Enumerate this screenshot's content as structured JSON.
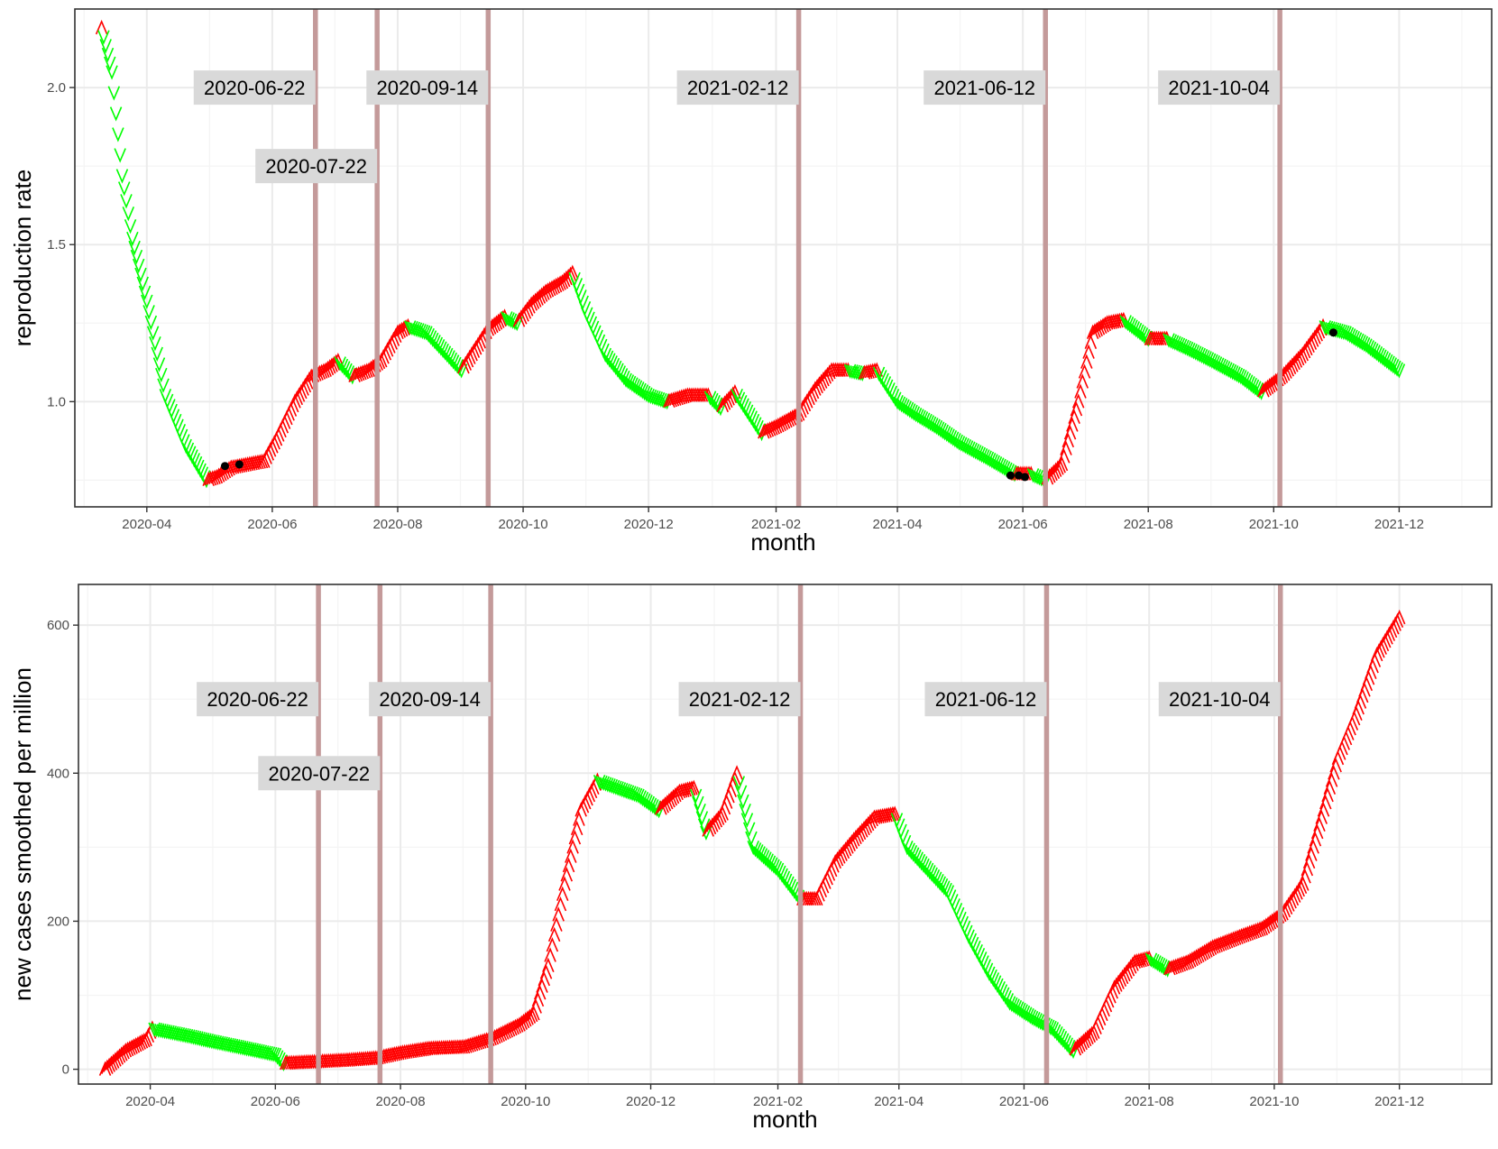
{
  "colors": {
    "increase": "#ff0000",
    "decrease": "#00ff00",
    "marker": "#000000",
    "vline": "#c49a9a",
    "label_bg": "#d9d9d9",
    "grid_major": "#ebebeb",
    "grid_minor": "#f4f4f4"
  },
  "chart_data": [
    {
      "type": "scatter",
      "xlabel": "month",
      "ylabel": "reproduction rate",
      "x_axis_type": "date",
      "xlim": [
        "2020-02-26",
        "2022-01-15"
      ],
      "ylim": [
        0.665,
        2.25
      ],
      "x_ticks": [
        "2020-04",
        "2020-06",
        "2020-08",
        "2020-10",
        "2020-12",
        "2021-02",
        "2021-04",
        "2021-06",
        "2021-08",
        "2021-10",
        "2021-12"
      ],
      "y_ticks": [
        "1.0",
        "1.5",
        "2.0"
      ],
      "y_tick_values": [
        1.0,
        1.5,
        2.0
      ],
      "grid": true,
      "legend": "none",
      "marker_legend": "down-arrow marker (green) = falling from previous day; up-arrow marker (red) = rising from previous day",
      "curve": [
        [
          "2020-03-10",
          2.19
        ],
        [
          "2020-03-15",
          2.05
        ],
        [
          "2020-03-20",
          1.72
        ],
        [
          "2020-03-25",
          1.52
        ],
        [
          "2020-04-01",
          1.32
        ],
        [
          "2020-04-10",
          1.02
        ],
        [
          "2020-04-20",
          0.86
        ],
        [
          "2020-04-30",
          0.75
        ],
        [
          "2020-05-05",
          0.76
        ],
        [
          "2020-05-12",
          0.79
        ],
        [
          "2020-05-20",
          0.8
        ],
        [
          "2020-05-28",
          0.81
        ],
        [
          "2020-06-03",
          0.88
        ],
        [
          "2020-06-12",
          1.0
        ],
        [
          "2020-06-20",
          1.08
        ],
        [
          "2020-06-27",
          1.1
        ],
        [
          "2020-07-03",
          1.13
        ],
        [
          "2020-07-10",
          1.08
        ],
        [
          "2020-07-18",
          1.1
        ],
        [
          "2020-07-24",
          1.13
        ],
        [
          "2020-08-01",
          1.22
        ],
        [
          "2020-08-06",
          1.24
        ],
        [
          "2020-08-15",
          1.22
        ],
        [
          "2020-08-25",
          1.15
        ],
        [
          "2020-09-01",
          1.1
        ],
        [
          "2020-09-08",
          1.17
        ],
        [
          "2020-09-14",
          1.23
        ],
        [
          "2020-09-22",
          1.27
        ],
        [
          "2020-09-28",
          1.25
        ],
        [
          "2020-10-05",
          1.31
        ],
        [
          "2020-10-12",
          1.35
        ],
        [
          "2020-10-20",
          1.38
        ],
        [
          "2020-10-25",
          1.41
        ],
        [
          "2020-11-01",
          1.28
        ],
        [
          "2020-11-10",
          1.15
        ],
        [
          "2020-11-20",
          1.07
        ],
        [
          "2020-12-01",
          1.02
        ],
        [
          "2020-12-10",
          1.0
        ],
        [
          "2020-12-20",
          1.02
        ],
        [
          "2020-12-30",
          1.02
        ],
        [
          "2021-01-05",
          0.98
        ],
        [
          "2021-01-12",
          1.03
        ],
        [
          "2021-01-18",
          0.97
        ],
        [
          "2021-01-25",
          0.9
        ],
        [
          "2021-02-01",
          0.92
        ],
        [
          "2021-02-12",
          0.96
        ],
        [
          "2021-02-20",
          1.04
        ],
        [
          "2021-02-28",
          1.1
        ],
        [
          "2021-03-08",
          1.1
        ],
        [
          "2021-03-15",
          1.09
        ],
        [
          "2021-03-22",
          1.1
        ],
        [
          "2021-04-01",
          1.0
        ],
        [
          "2021-04-10",
          0.96
        ],
        [
          "2021-04-20",
          0.92
        ],
        [
          "2021-05-01",
          0.87
        ],
        [
          "2021-05-15",
          0.82
        ],
        [
          "2021-05-28",
          0.77
        ],
        [
          "2021-06-05",
          0.77
        ],
        [
          "2021-06-12",
          0.75
        ],
        [
          "2021-06-20",
          0.8
        ],
        [
          "2021-06-28",
          1.0
        ],
        [
          "2021-07-05",
          1.22
        ],
        [
          "2021-07-12",
          1.25
        ],
        [
          "2021-07-20",
          1.26
        ],
        [
          "2021-08-01",
          1.2
        ],
        [
          "2021-08-10",
          1.2
        ],
        [
          "2021-08-20",
          1.17
        ],
        [
          "2021-09-01",
          1.13
        ],
        [
          "2021-09-15",
          1.08
        ],
        [
          "2021-09-25",
          1.03
        ],
        [
          "2021-10-05",
          1.08
        ],
        [
          "2021-10-15",
          1.15
        ],
        [
          "2021-10-25",
          1.24
        ],
        [
          "2021-11-05",
          1.22
        ],
        [
          "2021-11-15",
          1.18
        ],
        [
          "2021-11-25",
          1.13
        ],
        [
          "2021-12-01",
          1.1
        ]
      ],
      "highlight_points": [
        [
          "2020-05-09",
          0.795
        ],
        [
          "2020-05-16",
          0.8
        ],
        [
          "2021-05-26",
          0.765
        ],
        [
          "2021-05-30",
          0.765
        ],
        [
          "2021-06-02",
          0.76
        ],
        [
          "2021-10-30",
          1.22
        ]
      ],
      "vlines": [
        "2020-06-22",
        "2020-07-22",
        "2020-09-14",
        "2021-02-12",
        "2021-06-12",
        "2021-10-04"
      ],
      "annotations": [
        {
          "text": "2020-06-22",
          "x": "2020-06-22",
          "y": 2.0
        },
        {
          "text": "2020-07-22",
          "x": "2020-07-22",
          "y": 1.75
        },
        {
          "text": "2020-09-14",
          "x": "2020-09-14",
          "y": 2.0
        },
        {
          "text": "2021-02-12",
          "x": "2021-02-12",
          "y": 2.0
        },
        {
          "text": "2021-06-12",
          "x": "2021-06-12",
          "y": 2.0
        },
        {
          "text": "2021-10-04",
          "x": "2021-10-04",
          "y": 2.0
        }
      ]
    },
    {
      "type": "scatter",
      "xlabel": "month",
      "ylabel": "new cases smoothed per million",
      "x_axis_type": "date",
      "xlim": [
        "2020-02-26",
        "2022-01-15"
      ],
      "ylim": [
        -20,
        655
      ],
      "x_ticks": [
        "2020-04",
        "2020-06",
        "2020-08",
        "2020-10",
        "2020-12",
        "2021-02",
        "2021-04",
        "2021-06",
        "2021-08",
        "2021-10",
        "2021-12"
      ],
      "y_ticks": [
        "0",
        "200",
        "400",
        "600"
      ],
      "y_tick_values": [
        0,
        200,
        400,
        600
      ],
      "grid": true,
      "legend": "none",
      "marker_legend": "down-arrow marker (green) = falling from previous day; up-arrow marker (red) = rising from previous day",
      "curve": [
        [
          "2020-03-10",
          0
        ],
        [
          "2020-03-20",
          25
        ],
        [
          "2020-03-30",
          40
        ],
        [
          "2020-04-02",
          55
        ],
        [
          "2020-04-20",
          45
        ],
        [
          "2020-05-01",
          38
        ],
        [
          "2020-05-15",
          30
        ],
        [
          "2020-06-01",
          20
        ],
        [
          "2020-06-05",
          8
        ],
        [
          "2020-06-20",
          10
        ],
        [
          "2020-07-05",
          12
        ],
        [
          "2020-07-20",
          15
        ],
        [
          "2020-08-01",
          22
        ],
        [
          "2020-08-15",
          28
        ],
        [
          "2020-09-01",
          30
        ],
        [
          "2020-09-15",
          42
        ],
        [
          "2020-09-28",
          60
        ],
        [
          "2020-10-05",
          75
        ],
        [
          "2020-10-12",
          140
        ],
        [
          "2020-10-20",
          250
        ],
        [
          "2020-10-28",
          350
        ],
        [
          "2020-11-05",
          390
        ],
        [
          "2020-11-15",
          380
        ],
        [
          "2020-11-25",
          370
        ],
        [
          "2020-12-05",
          350
        ],
        [
          "2020-12-15",
          375
        ],
        [
          "2020-12-22",
          380
        ],
        [
          "2020-12-28",
          320
        ],
        [
          "2021-01-05",
          345
        ],
        [
          "2021-01-12",
          400
        ],
        [
          "2021-01-20",
          300
        ],
        [
          "2021-02-01",
          270
        ],
        [
          "2021-02-12",
          230
        ],
        [
          "2021-02-20",
          230
        ],
        [
          "2021-03-01",
          280
        ],
        [
          "2021-03-10",
          310
        ],
        [
          "2021-03-20",
          340
        ],
        [
          "2021-03-30",
          345
        ],
        [
          "2021-04-05",
          300
        ],
        [
          "2021-04-15",
          270
        ],
        [
          "2021-04-25",
          240
        ],
        [
          "2021-05-05",
          180
        ],
        [
          "2021-05-15",
          130
        ],
        [
          "2021-05-25",
          90
        ],
        [
          "2021-06-05",
          70
        ],
        [
          "2021-06-15",
          55
        ],
        [
          "2021-06-20",
          40
        ],
        [
          "2021-06-25",
          25
        ],
        [
          "2021-07-05",
          50
        ],
        [
          "2021-07-15",
          110
        ],
        [
          "2021-07-25",
          145
        ],
        [
          "2021-08-01",
          150
        ],
        [
          "2021-08-10",
          135
        ],
        [
          "2021-08-20",
          145
        ],
        [
          "2021-09-01",
          165
        ],
        [
          "2021-09-15",
          180
        ],
        [
          "2021-09-25",
          190
        ],
        [
          "2021-10-05",
          210
        ],
        [
          "2021-10-15",
          250
        ],
        [
          "2021-10-25",
          350
        ],
        [
          "2021-11-01",
          420
        ],
        [
          "2021-11-10",
          480
        ],
        [
          "2021-11-20",
          560
        ],
        [
          "2021-12-01",
          610
        ]
      ],
      "highlight_points": [],
      "vlines": [
        "2020-06-22",
        "2020-07-22",
        "2020-09-14",
        "2021-02-12",
        "2021-06-12",
        "2021-10-04"
      ],
      "annotations": [
        {
          "text": "2020-06-22",
          "x": "2020-06-22",
          "y": 500
        },
        {
          "text": "2020-07-22",
          "x": "2020-07-22",
          "y": 400
        },
        {
          "text": "2020-09-14",
          "x": "2020-09-14",
          "y": 500
        },
        {
          "text": "2021-02-12",
          "x": "2021-02-12",
          "y": 500
        },
        {
          "text": "2021-06-12",
          "x": "2021-06-12",
          "y": 500
        },
        {
          "text": "2021-10-04",
          "x": "2021-10-04",
          "y": 500
        }
      ]
    }
  ]
}
